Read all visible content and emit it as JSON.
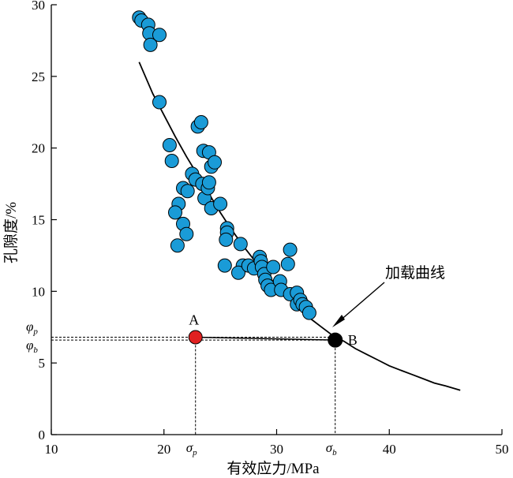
{
  "chart_data": {
    "type": "scatter",
    "xlabel": "有效应力/MPa",
    "ylabel": "孔隙度/%",
    "xlim": [
      10,
      50
    ],
    "ylim": [
      0,
      30
    ],
    "x_ticks": [
      10,
      20,
      30,
      40,
      50
    ],
    "y_ticks": [
      0,
      5,
      10,
      15,
      20,
      25,
      30
    ],
    "grid": false,
    "legend": "none",
    "colors": {
      "points": "#1a9bd7",
      "point_stroke": "#000000",
      "point_A": "#e02020",
      "point_B": "#000000",
      "curve": "#000000"
    },
    "series": [
      {
        "points": [
          [
            17.8,
            29.1
          ],
          [
            18.0,
            28.9
          ],
          [
            18.6,
            28.6
          ],
          [
            18.7,
            28.0
          ],
          [
            18.8,
            27.2
          ],
          [
            19.6,
            27.9
          ],
          [
            19.6,
            23.2
          ],
          [
            20.5,
            20.2
          ],
          [
            20.7,
            19.1
          ],
          [
            23.0,
            21.5
          ],
          [
            23.3,
            21.8
          ],
          [
            23.5,
            19.8
          ],
          [
            24.0,
            19.7
          ],
          [
            24.2,
            18.7
          ],
          [
            24.5,
            19.0
          ],
          [
            22.5,
            18.2
          ],
          [
            22.8,
            17.8
          ],
          [
            23.4,
            17.5
          ],
          [
            23.6,
            16.5
          ],
          [
            23.9,
            17.2
          ],
          [
            24.0,
            17.6
          ],
          [
            24.2,
            15.8
          ],
          [
            21.7,
            17.2
          ],
          [
            22.1,
            17.0
          ],
          [
            21.3,
            16.1
          ],
          [
            21.0,
            15.5
          ],
          [
            21.7,
            14.7
          ],
          [
            22.0,
            14.0
          ],
          [
            21.2,
            13.2
          ],
          [
            25.0,
            16.1
          ],
          [
            25.6,
            14.4
          ],
          [
            25.6,
            14.1
          ],
          [
            25.5,
            13.6
          ],
          [
            25.4,
            11.8
          ],
          [
            26.8,
            13.3
          ],
          [
            27.0,
            11.8
          ],
          [
            26.6,
            11.3
          ],
          [
            27.5,
            11.8
          ],
          [
            28.0,
            11.6
          ],
          [
            28.5,
            12.4
          ],
          [
            28.6,
            12.1
          ],
          [
            28.7,
            11.7
          ],
          [
            28.9,
            11.2
          ],
          [
            29.0,
            10.8
          ],
          [
            29.2,
            10.4
          ],
          [
            29.5,
            10.1
          ],
          [
            29.7,
            11.7
          ],
          [
            30.3,
            10.7
          ],
          [
            30.4,
            10.1
          ],
          [
            31.0,
            11.9
          ],
          [
            31.2,
            12.9
          ],
          [
            31.2,
            9.8
          ],
          [
            31.8,
            9.9
          ],
          [
            31.8,
            9.1
          ],
          [
            32.1,
            9.4
          ],
          [
            32.3,
            9.1
          ],
          [
            32.6,
            8.9
          ],
          [
            32.9,
            8.5
          ]
        ]
      }
    ],
    "curve": [
      [
        17.8,
        26.0
      ],
      [
        19.0,
        23.8
      ],
      [
        20.0,
        22.3
      ],
      [
        21.0,
        20.8
      ],
      [
        22.0,
        19.4
      ],
      [
        23.0,
        18.1
      ],
      [
        24.0,
        16.8
      ],
      [
        25.0,
        15.5
      ],
      [
        26.0,
        14.3
      ],
      [
        27.0,
        13.2
      ],
      [
        28.0,
        12.2
      ],
      [
        29.0,
        11.3
      ],
      [
        30.0,
        10.4
      ],
      [
        31.0,
        9.6
      ],
      [
        32.0,
        8.8
      ],
      [
        33.0,
        8.1
      ],
      [
        34.0,
        7.5
      ],
      [
        35.0,
        6.9
      ],
      [
        36.0,
        6.5
      ],
      [
        37.0,
        6.0
      ],
      [
        38.0,
        5.6
      ],
      [
        39.0,
        5.2
      ],
      [
        40.0,
        4.8
      ],
      [
        41.0,
        4.5
      ],
      [
        42.0,
        4.2
      ],
      [
        43.0,
        3.9
      ],
      [
        44.0,
        3.6
      ],
      [
        45.0,
        3.4
      ],
      [
        46.3,
        3.1
      ]
    ],
    "segment_AB": [
      [
        22.8,
        6.8
      ],
      [
        35.2,
        6.6
      ]
    ],
    "point_A": {
      "label": "A",
      "x": 22.8,
      "y": 6.8
    },
    "point_B": {
      "label": "B",
      "x": 35.2,
      "y": 6.6
    },
    "annotations": {
      "curve_label": "加载曲线",
      "sigma_p": {
        "symbol": "σ",
        "sub": "p",
        "x": 22.8
      },
      "sigma_b": {
        "symbol": "σ",
        "sub": "b",
        "x": 35.2
      },
      "phi_p": {
        "symbol": "φ",
        "sub": "p",
        "y": 6.8
      },
      "phi_b": {
        "symbol": "φ",
        "sub": "b",
        "y": 6.6
      }
    }
  }
}
